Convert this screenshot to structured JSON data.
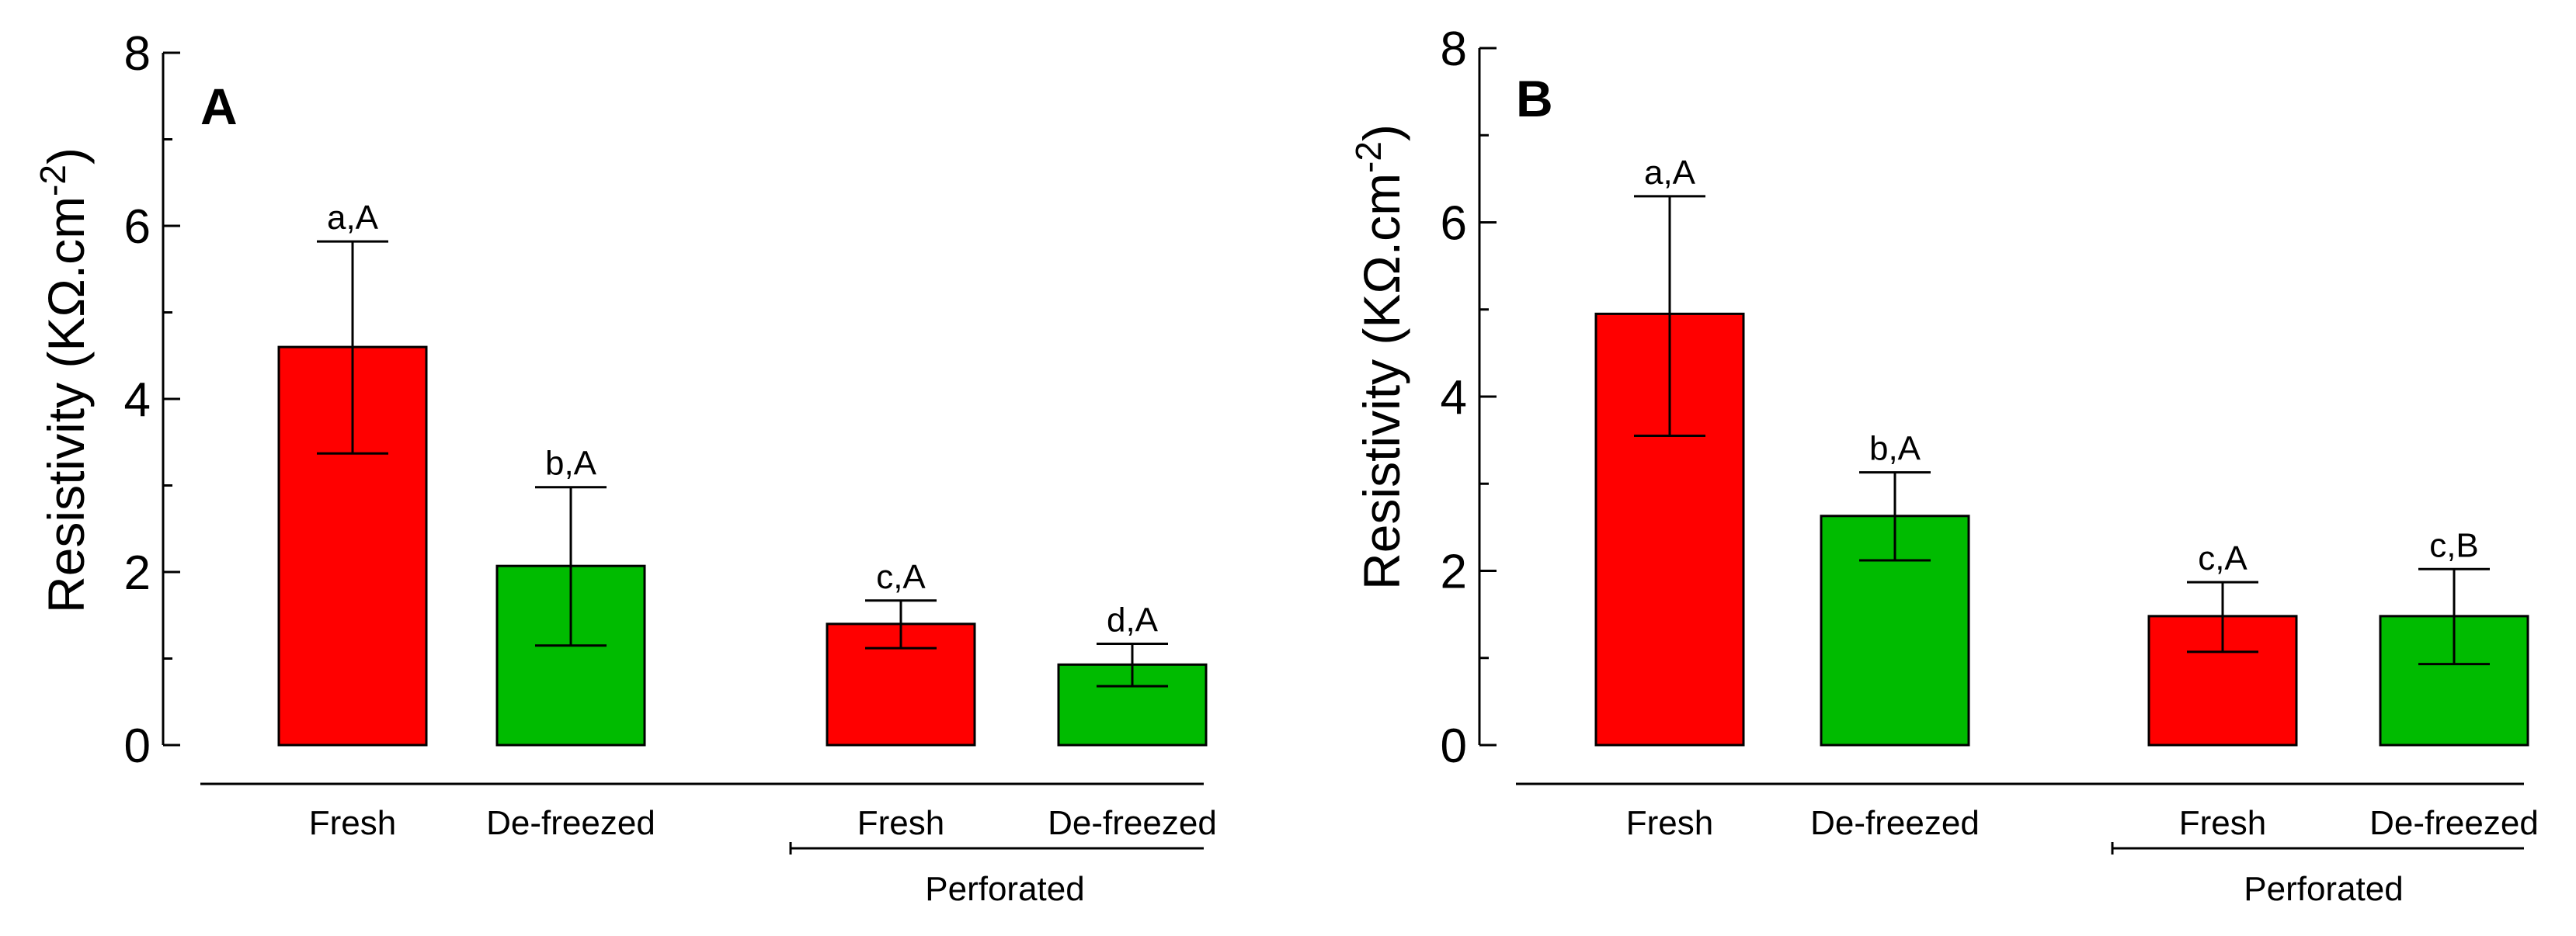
{
  "chart_data": [
    {
      "panel": "A",
      "type": "bar",
      "ylabel_main": "Resistivity (KΩ.cm",
      "ylabel_exp": "-2",
      "ylabel_close": ")",
      "ylim": [
        0,
        8
      ],
      "yticks": [
        "0",
        "2",
        "4",
        "6",
        "8"
      ],
      "categories": [
        "Fresh",
        "De-freezed",
        "Fresh",
        "De-freezed"
      ],
      "group_label": "Perforated",
      "values": [
        4.6,
        2.07,
        1.4,
        0.93
      ],
      "err_low": [
        3.37,
        1.15,
        1.12,
        0.68
      ],
      "err_high": [
        5.82,
        2.98,
        1.67,
        1.17
      ],
      "labels": [
        "a,A",
        "b,A",
        "c,A",
        "d,A"
      ],
      "colors": [
        "#ff0000",
        "#00bb00",
        "#ff0000",
        "#00bb00"
      ]
    },
    {
      "panel": "B",
      "type": "bar",
      "ylabel_main": "Resistivity (KΩ.cm",
      "ylabel_exp": "-2",
      "ylabel_close": ")",
      "ylim": [
        0,
        8
      ],
      "yticks": [
        "0",
        "2",
        "4",
        "6",
        "8"
      ],
      "categories": [
        "Fresh",
        "De-freezed",
        "Fresh",
        "De-freezed"
      ],
      "group_label": "Perforated",
      "values": [
        4.95,
        2.63,
        1.48,
        1.48
      ],
      "err_low": [
        3.55,
        2.12,
        1.07,
        0.93
      ],
      "err_high": [
        6.3,
        3.13,
        1.87,
        2.02
      ],
      "labels": [
        "a,A",
        "b,A",
        "c,A",
        "c,B"
      ],
      "colors": [
        "#ff0000",
        "#00bb00",
        "#ff0000",
        "#00bb00"
      ]
    }
  ]
}
